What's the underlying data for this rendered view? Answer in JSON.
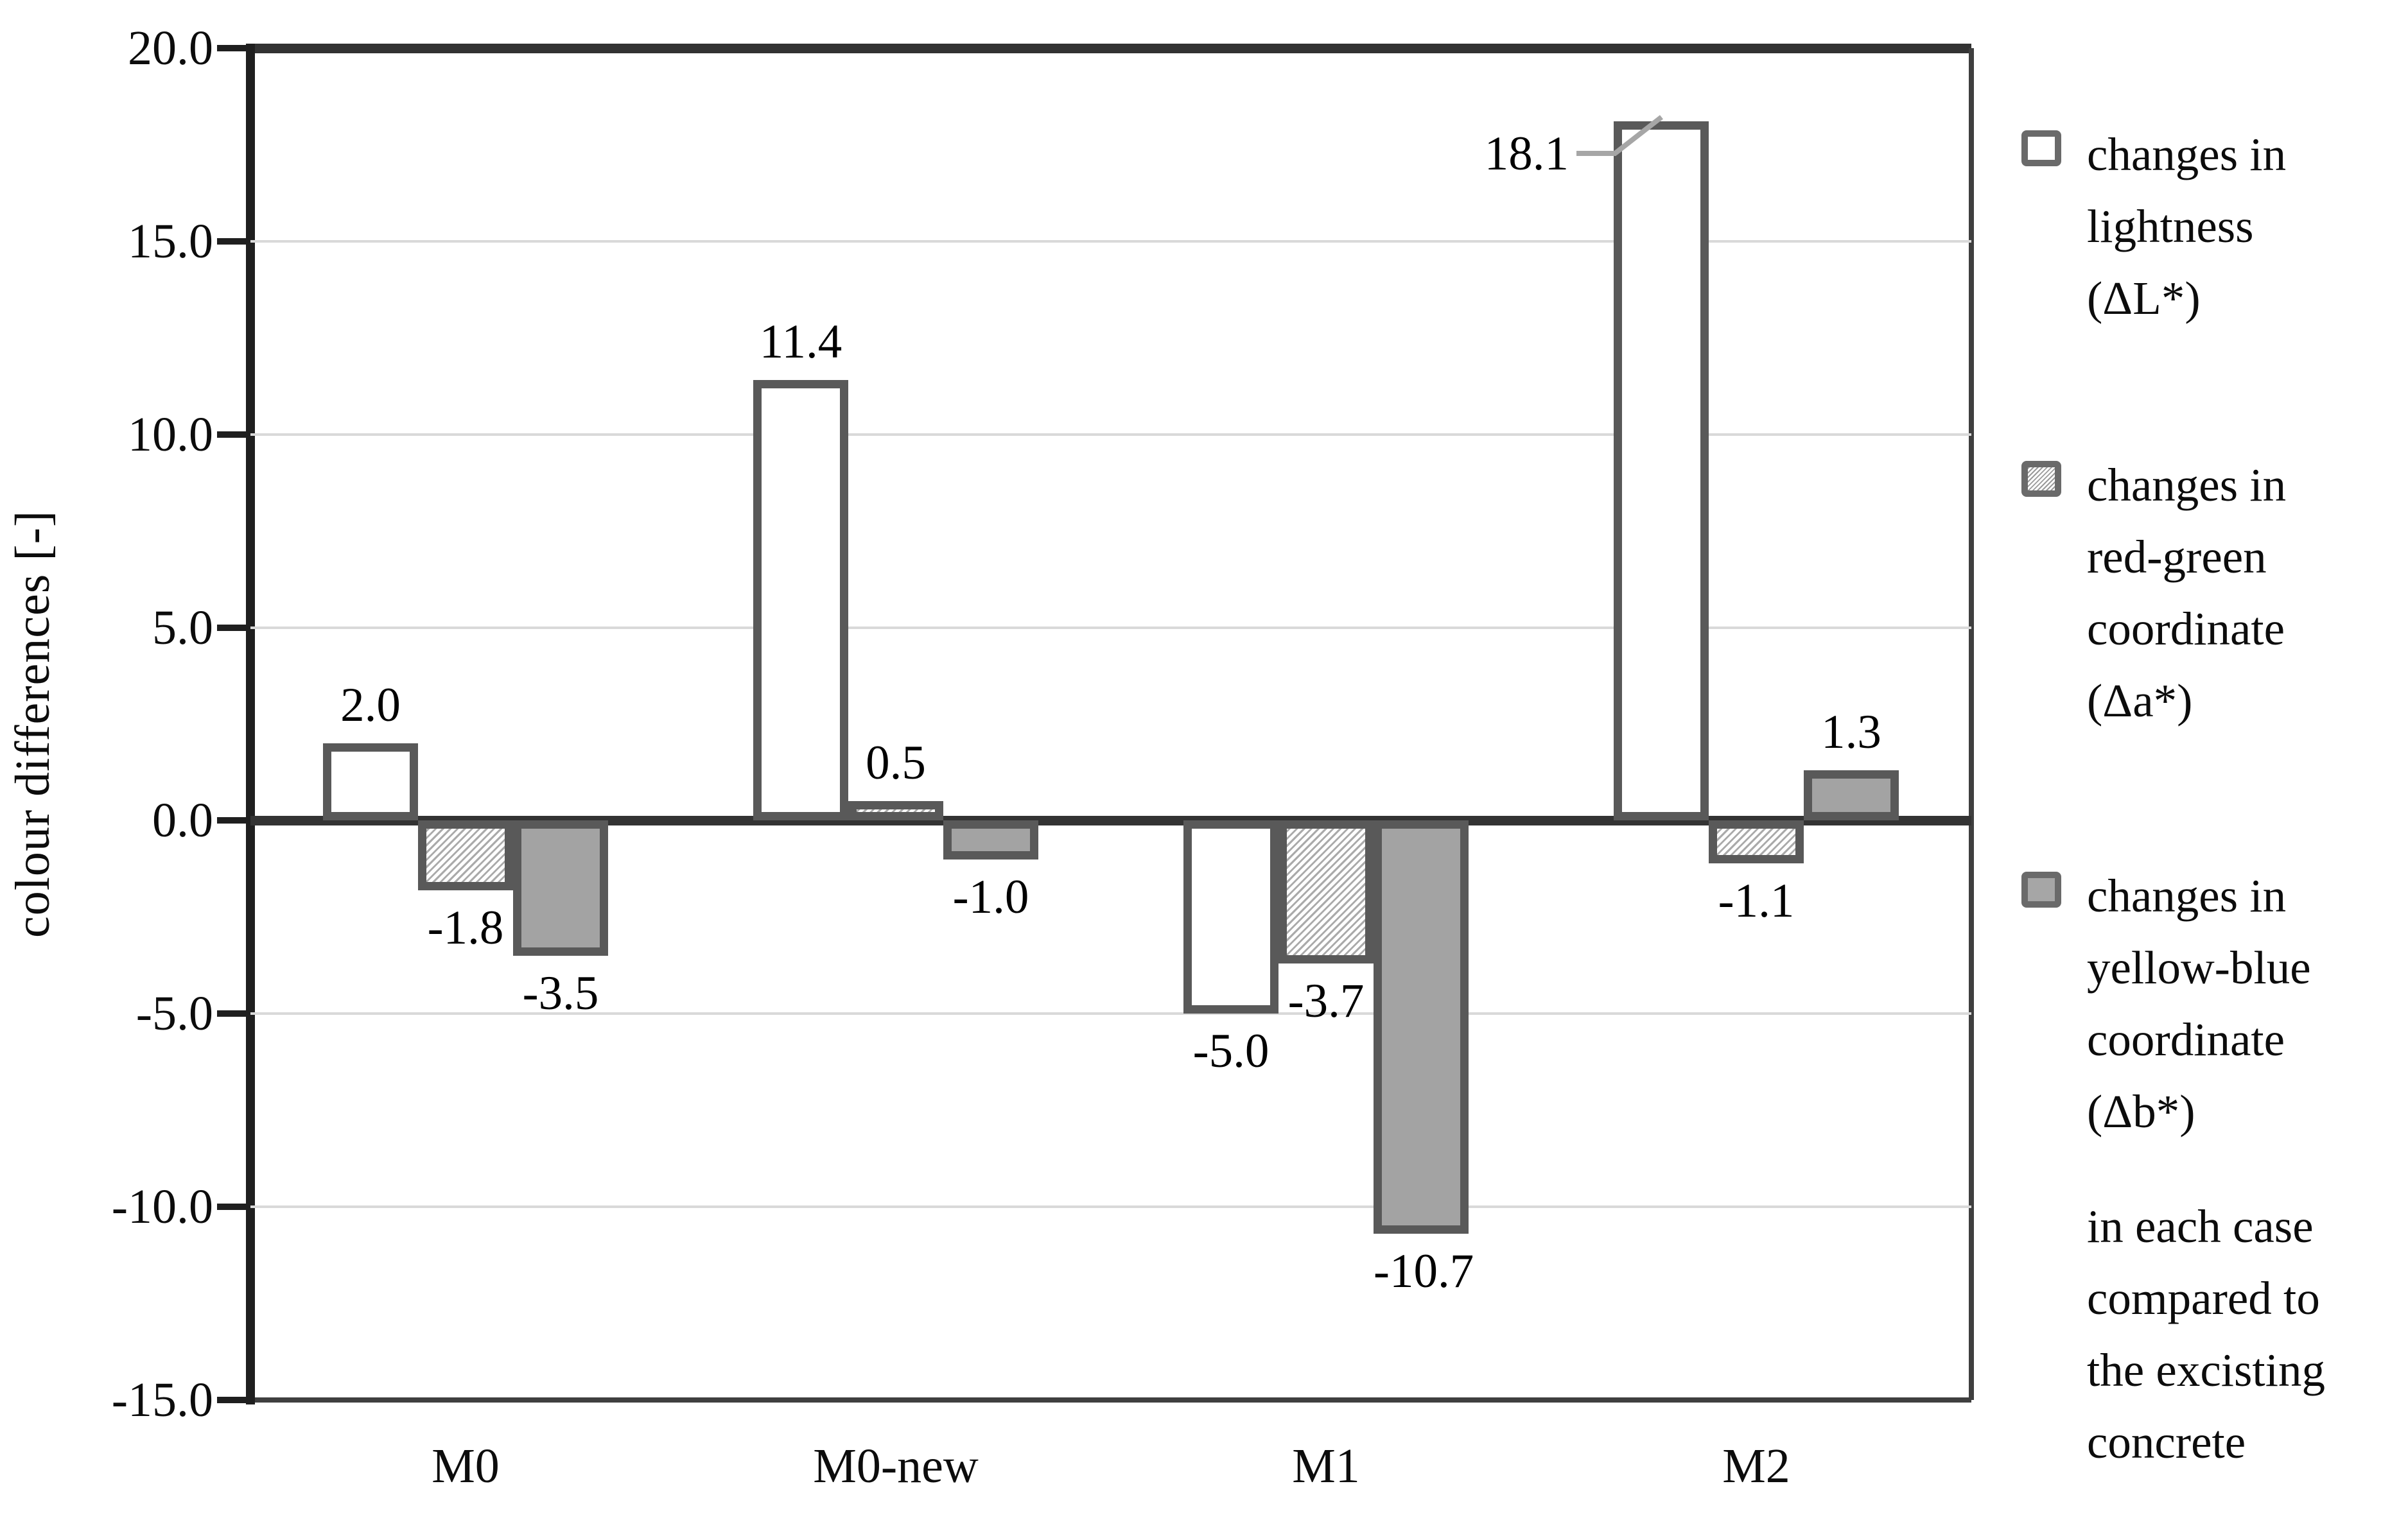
{
  "chart_data": {
    "type": "bar",
    "title": "",
    "xlabel": "",
    "ylabel": "colour differences [-]",
    "ylim": [
      -15,
      20
    ],
    "ytick_step": 5,
    "grid": true,
    "legend_position": "right",
    "categories": [
      "M0",
      "M0-new",
      "M1",
      "M2"
    ],
    "series": [
      {
        "name": "changes in lightness (ΔL*)",
        "style": "white",
        "values": [
          2.0,
          11.4,
          -5.0,
          18.1
        ],
        "labels": [
          "2.0",
          "11.4",
          "-5.0",
          "18.1"
        ]
      },
      {
        "name": "changes in red-green coordinate (Δa*)",
        "style": "hatch",
        "values": [
          -1.8,
          0.5,
          -3.7,
          -1.1
        ],
        "labels": [
          "-1.8",
          "0.5",
          "-3.7",
          "-1.1"
        ]
      },
      {
        "name": "changes in yellow-blue coordinate (Δb*)",
        "style": "gray",
        "values": [
          -3.5,
          -1.0,
          -10.7,
          1.3
        ],
        "labels": [
          "-3.5",
          "-1.0",
          "-10.7",
          "1.3"
        ]
      }
    ],
    "label_overrides": [
      {
        "series": 0,
        "category": 3,
        "placement": "leader-left"
      }
    ],
    "ytick_labels": [
      "20.0",
      "15.0",
      "10.0",
      "5.0",
      "0.0",
      "-5.0",
      "-10.0",
      "-15.0"
    ]
  },
  "y_axis": {
    "title": "colour differences [-]"
  },
  "legend": {
    "items": [
      {
        "swatch": "white",
        "label": "changes in\nlightness\n(ΔL*)"
      },
      {
        "swatch": "hatch",
        "label": "changes in\nred-green\ncoordinate\n(Δa*)"
      },
      {
        "swatch": "gray",
        "label": "changes in\nyellow-blue\ncoordinate\n(Δb*)"
      }
    ],
    "note": "in each case\ncompared to\nthe excisting\nconcrete"
  },
  "colors": {
    "bar_border": "#595959",
    "bar_gray_fill": "#a3a3a3",
    "axis_dark": "#1f1f1f",
    "zero_line": "#333333",
    "gridline": "#d9d9d9",
    "leader": "#a6a6a6"
  }
}
